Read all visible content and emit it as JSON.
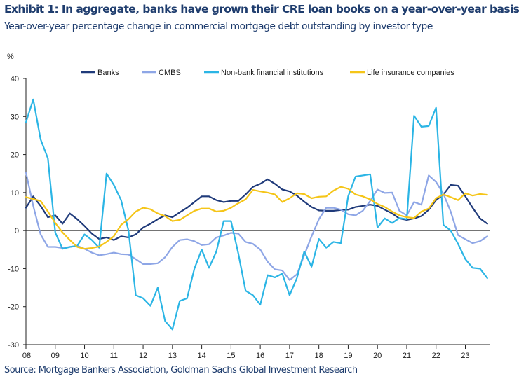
{
  "title": "Exhibit 1: In aggregate, banks have grown their CRE loan books on a year-over-year basis",
  "subtitle": "Year-over-year percentage change in commercial mortgage debt outstanding by investor type",
  "source": "Source: Mortgage Bankers Association, Goldman Sachs Global Investment Research",
  "chart_data": {
    "type": "line",
    "ylabel": "%",
    "xlabel": "",
    "ylim": [
      -30,
      40
    ],
    "yticks": [
      -30,
      -20,
      -10,
      0,
      10,
      20,
      30,
      40
    ],
    "xlim": [
      2008,
      2023.85
    ],
    "xticks": [
      "08",
      "09",
      "10",
      "11",
      "12",
      "13",
      "14",
      "15",
      "16",
      "17",
      "18",
      "19",
      "20",
      "21",
      "22",
      "23"
    ],
    "grid": false,
    "legend_position": "top",
    "series": [
      {
        "name": "Banks",
        "color": "#1f3a7a",
        "points": [
          [
            2008.0,
            6.0
          ],
          [
            2008.25,
            9.0
          ],
          [
            2008.5,
            6.5
          ],
          [
            2008.75,
            3.5
          ],
          [
            2009.0,
            4.0
          ],
          [
            2009.25,
            1.8
          ],
          [
            2009.5,
            4.5
          ],
          [
            2009.75,
            3.0
          ],
          [
            2010.0,
            1.2
          ],
          [
            2010.25,
            -0.8
          ],
          [
            2010.5,
            -2.2
          ],
          [
            2010.75,
            -1.8
          ],
          [
            2011.0,
            -2.5
          ],
          [
            2011.25,
            -1.5
          ],
          [
            2011.5,
            -1.8
          ],
          [
            2011.75,
            -1.0
          ],
          [
            2012.0,
            0.8
          ],
          [
            2012.25,
            1.8
          ],
          [
            2012.5,
            3.0
          ],
          [
            2012.75,
            4.0
          ],
          [
            2013.0,
            3.5
          ],
          [
            2013.25,
            4.8
          ],
          [
            2013.5,
            6.0
          ],
          [
            2013.75,
            7.5
          ],
          [
            2014.0,
            9.0
          ],
          [
            2014.25,
            9.0
          ],
          [
            2014.5,
            8.0
          ],
          [
            2014.75,
            7.5
          ],
          [
            2015.0,
            7.8
          ],
          [
            2015.25,
            7.8
          ],
          [
            2015.5,
            9.5
          ],
          [
            2015.75,
            11.5
          ],
          [
            2016.0,
            12.3
          ],
          [
            2016.25,
            13.5
          ],
          [
            2016.5,
            12.3
          ],
          [
            2016.75,
            10.8
          ],
          [
            2017.0,
            10.3
          ],
          [
            2017.25,
            9.2
          ],
          [
            2017.5,
            7.6
          ],
          [
            2017.75,
            6.2
          ],
          [
            2018.0,
            5.3
          ],
          [
            2018.25,
            5.2
          ],
          [
            2018.5,
            5.2
          ],
          [
            2018.75,
            5.4
          ],
          [
            2019.0,
            5.5
          ],
          [
            2019.25,
            6.2
          ],
          [
            2019.5,
            6.5
          ],
          [
            2019.75,
            6.8
          ],
          [
            2020.0,
            6.5
          ],
          [
            2020.25,
            5.5
          ],
          [
            2020.5,
            4.5
          ],
          [
            2020.75,
            3.2
          ],
          [
            2021.0,
            2.8
          ],
          [
            2021.25,
            3.2
          ],
          [
            2021.5,
            3.8
          ],
          [
            2021.75,
            5.5
          ],
          [
            2022.0,
            8.0
          ],
          [
            2022.25,
            9.5
          ],
          [
            2022.5,
            12.0
          ],
          [
            2022.75,
            11.8
          ],
          [
            2023.0,
            9.0
          ],
          [
            2023.25,
            6.0
          ],
          [
            2023.5,
            3.2
          ],
          [
            2023.75,
            1.8
          ]
        ]
      },
      {
        "name": "CMBS",
        "color": "#8ea6e6",
        "points": [
          [
            2008.0,
            15.3
          ],
          [
            2008.25,
            6.5
          ],
          [
            2008.5,
            -1.0
          ],
          [
            2008.75,
            -4.3
          ],
          [
            2009.0,
            -4.3
          ],
          [
            2009.25,
            -4.6
          ],
          [
            2009.5,
            -4.3
          ],
          [
            2009.75,
            -4.0
          ],
          [
            2010.0,
            -4.8
          ],
          [
            2010.25,
            -5.8
          ],
          [
            2010.5,
            -6.5
          ],
          [
            2010.75,
            -6.2
          ],
          [
            2011.0,
            -5.8
          ],
          [
            2011.25,
            -6.2
          ],
          [
            2011.5,
            -6.3
          ],
          [
            2011.75,
            -7.5
          ],
          [
            2012.0,
            -8.8
          ],
          [
            2012.25,
            -8.8
          ],
          [
            2012.5,
            -8.6
          ],
          [
            2012.75,
            -7.0
          ],
          [
            2013.0,
            -4.3
          ],
          [
            2013.25,
            -2.5
          ],
          [
            2013.5,
            -2.3
          ],
          [
            2013.75,
            -2.8
          ],
          [
            2014.0,
            -3.8
          ],
          [
            2014.25,
            -3.6
          ],
          [
            2014.5,
            -1.8
          ],
          [
            2014.75,
            -1.3
          ],
          [
            2015.0,
            -0.6
          ],
          [
            2015.25,
            -0.8
          ],
          [
            2015.5,
            -3.0
          ],
          [
            2015.75,
            -3.5
          ],
          [
            2016.0,
            -5.0
          ],
          [
            2016.25,
            -8.2
          ],
          [
            2016.5,
            -10.2
          ],
          [
            2016.75,
            -10.5
          ],
          [
            2017.0,
            -13.0
          ],
          [
            2017.25,
            -11.5
          ],
          [
            2017.5,
            -6.5
          ],
          [
            2017.75,
            -1.5
          ],
          [
            2018.0,
            3.0
          ],
          [
            2018.25,
            6.0
          ],
          [
            2018.5,
            6.0
          ],
          [
            2018.75,
            5.5
          ],
          [
            2019.0,
            4.3
          ],
          [
            2019.25,
            4.0
          ],
          [
            2019.5,
            5.2
          ],
          [
            2019.75,
            7.8
          ],
          [
            2020.0,
            10.8
          ],
          [
            2020.25,
            9.9
          ],
          [
            2020.5,
            10.0
          ],
          [
            2020.75,
            5.2
          ],
          [
            2021.0,
            4.0
          ],
          [
            2021.25,
            7.5
          ],
          [
            2021.5,
            6.8
          ],
          [
            2021.75,
            14.5
          ],
          [
            2022.0,
            12.8
          ],
          [
            2022.25,
            9.7
          ],
          [
            2022.5,
            5.0
          ],
          [
            2022.75,
            -1.2
          ],
          [
            2023.0,
            -2.3
          ],
          [
            2023.25,
            -3.3
          ],
          [
            2023.5,
            -2.8
          ],
          [
            2023.75,
            -1.5
          ]
        ]
      },
      {
        "name": "Non-bank financial institutions",
        "color": "#2bb5e5",
        "points": [
          [
            2008.0,
            28.5
          ],
          [
            2008.25,
            34.5
          ],
          [
            2008.5,
            24.0
          ],
          [
            2008.75,
            19.0
          ],
          [
            2009.0,
            -0.5
          ],
          [
            2009.25,
            -4.8
          ],
          [
            2009.5,
            -4.3
          ],
          [
            2009.75,
            -4.0
          ],
          [
            2010.0,
            -1.0
          ],
          [
            2010.25,
            -2.5
          ],
          [
            2010.5,
            -4.5
          ],
          [
            2010.75,
            15.0
          ],
          [
            2011.0,
            12.0
          ],
          [
            2011.25,
            8.0
          ],
          [
            2011.5,
            0.0
          ],
          [
            2011.75,
            -17.0
          ],
          [
            2012.0,
            -17.8
          ],
          [
            2012.25,
            -19.8
          ],
          [
            2012.5,
            -15.0
          ],
          [
            2012.75,
            -23.8
          ],
          [
            2013.0,
            -26.0
          ],
          [
            2013.25,
            -18.5
          ],
          [
            2013.5,
            -17.8
          ],
          [
            2013.75,
            -10.0
          ],
          [
            2014.0,
            -5.0
          ],
          [
            2014.25,
            -9.8
          ],
          [
            2014.5,
            -5.5
          ],
          [
            2014.75,
            2.5
          ],
          [
            2015.0,
            2.5
          ],
          [
            2015.25,
            -6.0
          ],
          [
            2015.5,
            -15.8
          ],
          [
            2015.75,
            -17.0
          ],
          [
            2016.0,
            -19.5
          ],
          [
            2016.25,
            -11.7
          ],
          [
            2016.5,
            -12.3
          ],
          [
            2016.75,
            -11.3
          ],
          [
            2017.0,
            -17.0
          ],
          [
            2017.25,
            -12.5
          ],
          [
            2017.5,
            -5.5
          ],
          [
            2017.75,
            -9.5
          ],
          [
            2018.0,
            -2.2
          ],
          [
            2018.25,
            -4.5
          ],
          [
            2018.5,
            -3.0
          ],
          [
            2018.75,
            -3.3
          ],
          [
            2019.0,
            9.0
          ],
          [
            2019.25,
            14.2
          ],
          [
            2019.5,
            14.5
          ],
          [
            2019.75,
            14.8
          ],
          [
            2020.0,
            0.8
          ],
          [
            2020.25,
            3.2
          ],
          [
            2020.5,
            2.0
          ],
          [
            2020.75,
            3.3
          ],
          [
            2021.0,
            3.0
          ],
          [
            2021.25,
            30.2
          ],
          [
            2021.5,
            27.3
          ],
          [
            2021.75,
            27.5
          ],
          [
            2022.0,
            32.3
          ],
          [
            2022.25,
            1.5
          ],
          [
            2022.5,
            0.0
          ],
          [
            2022.75,
            -3.5
          ],
          [
            2023.0,
            -7.5
          ],
          [
            2023.25,
            -9.8
          ],
          [
            2023.5,
            -10.0
          ],
          [
            2023.75,
            -12.5
          ]
        ]
      },
      {
        "name": "Life insurance companies",
        "color": "#f5c518",
        "points": [
          [
            2008.0,
            8.8
          ],
          [
            2008.25,
            8.3
          ],
          [
            2008.5,
            7.8
          ],
          [
            2008.75,
            5.0
          ],
          [
            2009.0,
            2.0
          ],
          [
            2009.25,
            -0.5
          ],
          [
            2009.5,
            -2.5
          ],
          [
            2009.75,
            -4.3
          ],
          [
            2010.0,
            -4.8
          ],
          [
            2010.25,
            -4.6
          ],
          [
            2010.5,
            -4.2
          ],
          [
            2010.75,
            -3.0
          ],
          [
            2011.0,
            -1.5
          ],
          [
            2011.25,
            1.5
          ],
          [
            2011.5,
            3.0
          ],
          [
            2011.75,
            5.0
          ],
          [
            2012.0,
            6.0
          ],
          [
            2012.25,
            5.6
          ],
          [
            2012.5,
            4.5
          ],
          [
            2012.75,
            3.8
          ],
          [
            2013.0,
            2.5
          ],
          [
            2013.25,
            2.8
          ],
          [
            2013.5,
            4.0
          ],
          [
            2013.75,
            5.2
          ],
          [
            2014.0,
            5.8
          ],
          [
            2014.25,
            5.8
          ],
          [
            2014.5,
            5.0
          ],
          [
            2014.75,
            5.2
          ],
          [
            2015.0,
            6.0
          ],
          [
            2015.25,
            7.2
          ],
          [
            2015.5,
            8.2
          ],
          [
            2015.75,
            10.7
          ],
          [
            2016.0,
            10.3
          ],
          [
            2016.25,
            10.0
          ],
          [
            2016.5,
            9.5
          ],
          [
            2016.75,
            7.5
          ],
          [
            2017.0,
            8.5
          ],
          [
            2017.25,
            9.8
          ],
          [
            2017.5,
            9.6
          ],
          [
            2017.75,
            8.5
          ],
          [
            2018.0,
            8.9
          ],
          [
            2018.25,
            9.0
          ],
          [
            2018.5,
            10.5
          ],
          [
            2018.75,
            11.5
          ],
          [
            2019.0,
            11.0
          ],
          [
            2019.25,
            9.5
          ],
          [
            2019.5,
            9.0
          ],
          [
            2019.75,
            8.2
          ],
          [
            2020.0,
            7.0
          ],
          [
            2020.25,
            6.2
          ],
          [
            2020.5,
            5.0
          ],
          [
            2020.75,
            4.0
          ],
          [
            2021.0,
            3.5
          ],
          [
            2021.25,
            3.3
          ],
          [
            2021.5,
            5.0
          ],
          [
            2021.75,
            5.8
          ],
          [
            2022.0,
            8.5
          ],
          [
            2022.25,
            9.5
          ],
          [
            2022.5,
            8.8
          ],
          [
            2022.75,
            8.0
          ],
          [
            2023.0,
            9.8
          ],
          [
            2023.25,
            9.2
          ],
          [
            2023.5,
            9.6
          ],
          [
            2023.75,
            9.4
          ]
        ]
      }
    ]
  }
}
